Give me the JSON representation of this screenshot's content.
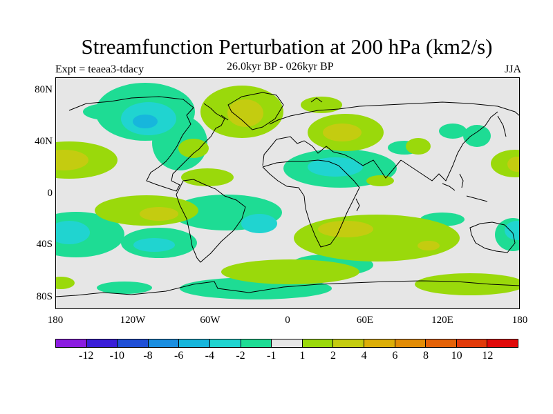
{
  "title": "Streamfunction Perturbation at 200 hPa (km2/s)",
  "left_subtitle": "Expt = teaea3-tdacy",
  "center_subtitle": "26.0kyr BP - 026kyr BP",
  "right_subtitle": "JJA",
  "lat_labels": [
    "80N",
    "40N",
    "0",
    "40S",
    "80S"
  ],
  "lon_labels": [
    "180",
    "120W",
    "60W",
    "0",
    "60E",
    "120E",
    "180"
  ],
  "colorbar": {
    "colors": [
      "#8b1ce0",
      "#3a1ed8",
      "#1f4fd6",
      "#1a8ee0",
      "#17b6dc",
      "#20d4d0",
      "#1edc94",
      "#e6e6e6",
      "#9ad90b",
      "#c4cc10",
      "#dcae08",
      "#e28c06",
      "#e46208",
      "#e23a0a",
      "#e00a0a"
    ],
    "labels": [
      "-12",
      "-10",
      "-8",
      "-6",
      "-4",
      "-2",
      "-1",
      "1",
      "2",
      "4",
      "6",
      "8",
      "10",
      "12"
    ]
  },
  "field_colors": {
    "background": "#e6e6e6",
    "neg1": "#1edc94",
    "neg2": "#20d4d0",
    "neg4": "#17b6dc",
    "pos1": "#9ad90b",
    "pos2": "#c4cc10"
  }
}
